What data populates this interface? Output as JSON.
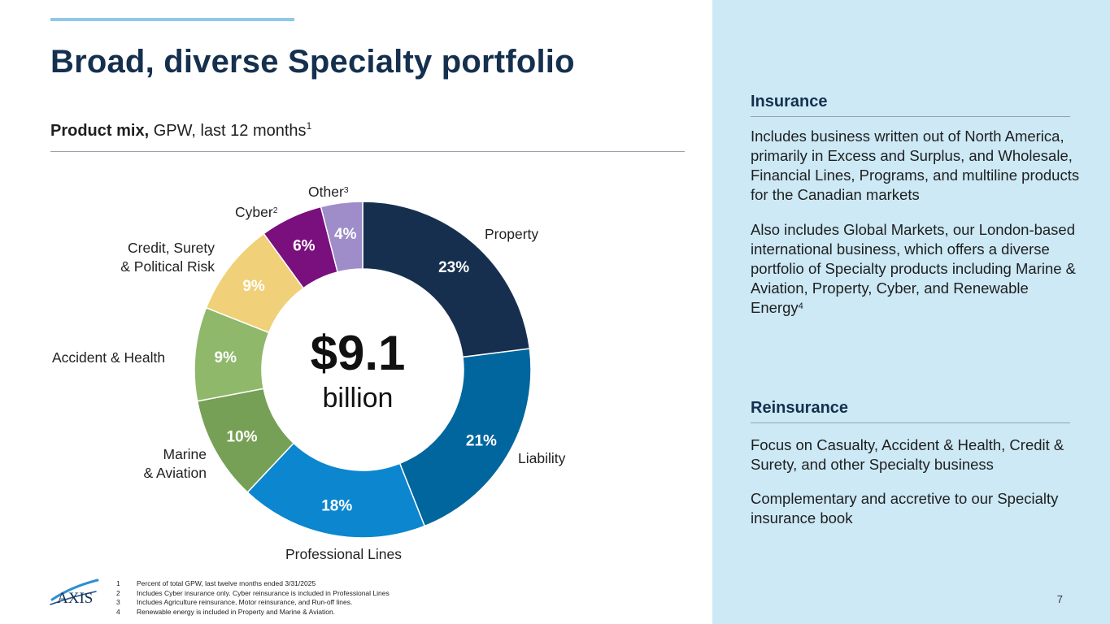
{
  "title": "Broad, diverse Specialty portfolio",
  "subtitle": {
    "bold": "Product mix,",
    "rest": " GPW, last 12 months",
    "sup": "1"
  },
  "center": {
    "value": "$9.1",
    "unit": "billion"
  },
  "chart_data": {
    "type": "pie",
    "donut": true,
    "title": "Product mix, GPW, last 12 months",
    "total": "$9.1 billion",
    "categories": [
      "Property",
      "Liability",
      "Professional Lines",
      "Marine & Aviation",
      "Accident & Health",
      "Credit, Surety & Political Risk",
      "Cyber",
      "Other"
    ],
    "values": [
      23,
      21,
      18,
      10,
      9,
      9,
      6,
      4
    ],
    "value_labels": [
      "23%",
      "21%",
      "18%",
      "10%",
      "9%",
      "9%",
      "6%",
      "4%"
    ],
    "colors": [
      "#172f4f",
      "#00669d",
      "#0b86cf",
      "#76a055",
      "#8fb86a",
      "#f0d078",
      "#7a0f7e",
      "#9e8dc9"
    ],
    "label_colors": [
      "#ffffff",
      "#ffffff",
      "#ffffff",
      "#ffffff",
      "#ffffff",
      "#ffffff",
      "#ffffff",
      "#ffffff"
    ]
  },
  "labels": {
    "property": "Property",
    "liability": "Liability",
    "professional": "Professional Lines",
    "marine_line1": "Marine",
    "marine_line2": "& Aviation",
    "accident": "Accident & Health",
    "credit_line1": "Credit, Surety",
    "credit_line2": "& Political Risk",
    "cyber": "Cyber",
    "cyber_sup": "2",
    "other": "Other",
    "other_sup": "3"
  },
  "panel": {
    "insurance": {
      "heading": "Insurance",
      "p1": "Includes business written out of North America, primarily in Excess and Surplus, and Wholesale, Financial Lines, Programs, and multiline products for the Canadian markets",
      "p2": "Also includes Global Markets, our London-based international business, which offers a diverse portfolio of Specialty products including Marine & Aviation, Property, Cyber, and Renewable Energy",
      "p2_sup": "4"
    },
    "reinsurance": {
      "heading": "Reinsurance",
      "p1": "Focus on Casualty, Accident & Health, Credit & Surety, and other Specialty business",
      "p2": "Complementary and accretive to our Specialty insurance book"
    }
  },
  "footnotes": [
    {
      "n": "1",
      "text": "Percent of total GPW, last twelve months ended 3/31/2025"
    },
    {
      "n": "2",
      "text": "Includes Cyber insurance only. Cyber reinsurance is included in Professional Lines"
    },
    {
      "n": "3",
      "text": "Includes Agriculture reinsurance, Motor reinsurance, and Run-off lines."
    },
    {
      "n": "4",
      "text": "Renewable energy is included in Property and Marine & Aviation."
    }
  ],
  "logo_text": "AXIS",
  "page_number": "7"
}
